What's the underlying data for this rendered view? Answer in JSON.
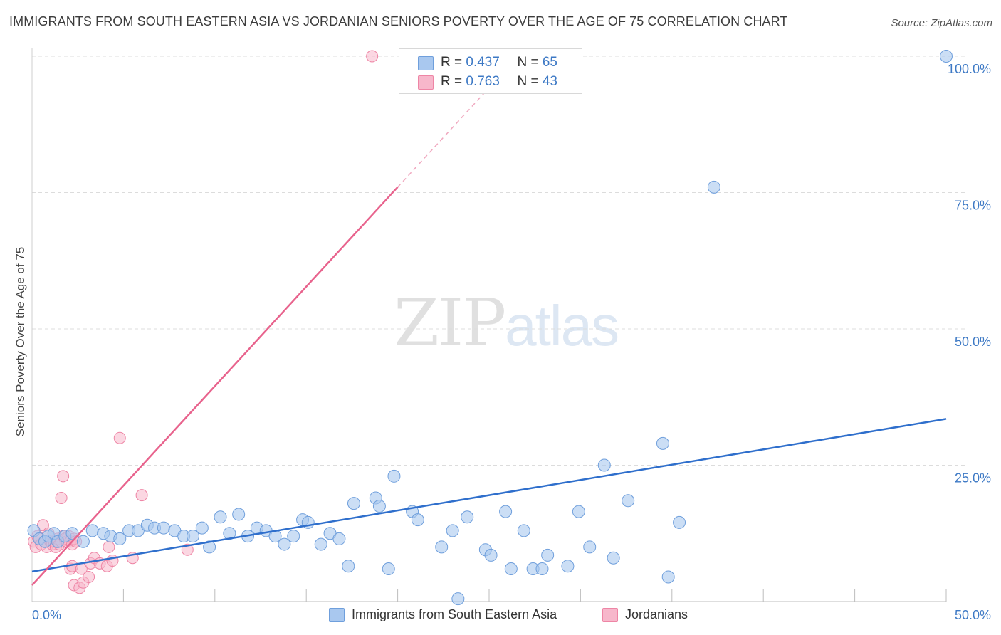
{
  "title": "IMMIGRANTS FROM SOUTH EASTERN ASIA VS JORDANIAN SENIORS POVERTY OVER THE AGE OF 75 CORRELATION CHART",
  "source": "Source: ZipAtlas.com",
  "watermark": {
    "zip": "ZIP",
    "atlas": "atlas"
  },
  "legend": {
    "rows": [
      {
        "r_label": "R = ",
        "r_value": "0.437",
        "n_label": "N = ",
        "n_value": "65",
        "color": "#a9c8ef"
      },
      {
        "r_label": "R = ",
        "r_value": "0.763",
        "n_label": "N = ",
        "n_value": "43",
        "color": "#f7b7cb"
      }
    ]
  },
  "bottom_legend": [
    {
      "label": "Immigrants from South Eastern Asia",
      "color": "#a9c8ef"
    },
    {
      "label": "Jordanians",
      "color": "#f7b7cb"
    }
  ],
  "chart_data": {
    "type": "scatter",
    "title": "IMMIGRANTS FROM SOUTH EASTERN ASIA VS JORDANIAN SENIORS POVERTY OVER THE AGE OF 75 CORRELATION CHART",
    "xlabel": "",
    "ylabel": "Seniors Poverty Over the Age of 75",
    "xlim": [
      0,
      50
    ],
    "ylim": [
      0,
      100
    ],
    "x_tick_labels": [
      "0.0%",
      "50.0%"
    ],
    "y_tick_labels": [
      "25.0%",
      "50.0%",
      "75.0%",
      "100.0%"
    ],
    "y_ticks": [
      25,
      50,
      75,
      100
    ],
    "grid": "horizontal dashed",
    "legend_position": "top-center",
    "colors": {
      "blue_fill": "#a9c8ef",
      "blue_stroke": "#6f9fdc",
      "blue_line": "#2f6fcc",
      "pink_fill": "#f7b7cb",
      "pink_stroke": "#ee85a5",
      "pink_line": "#e8638d",
      "tick_label": "#3d79c5",
      "grid": "#dcdcdc"
    },
    "series": [
      {
        "name": "Immigrants from South Eastern Asia",
        "r": 0.437,
        "n": 65,
        "trend": {
          "x": [
            0,
            50
          ],
          "y": [
            5.5,
            33.5
          ]
        },
        "points": [
          [
            0.1,
            13.0
          ],
          [
            0.4,
            11.5
          ],
          [
            0.7,
            11.0
          ],
          [
            0.9,
            12.0
          ],
          [
            1.2,
            12.5
          ],
          [
            1.4,
            11.0
          ],
          [
            1.8,
            12.0
          ],
          [
            2.2,
            12.5
          ],
          [
            2.8,
            11.0
          ],
          [
            3.3,
            13.0
          ],
          [
            3.9,
            12.5
          ],
          [
            4.3,
            12.0
          ],
          [
            4.8,
            11.5
          ],
          [
            5.3,
            13.0
          ],
          [
            5.8,
            13.0
          ],
          [
            6.3,
            14.0
          ],
          [
            6.7,
            13.5
          ],
          [
            7.2,
            13.5
          ],
          [
            7.8,
            13.0
          ],
          [
            8.3,
            12.0
          ],
          [
            8.8,
            12.0
          ],
          [
            9.3,
            13.5
          ],
          [
            9.7,
            10.0
          ],
          [
            10.3,
            15.5
          ],
          [
            10.8,
            12.5
          ],
          [
            11.3,
            16.0
          ],
          [
            11.8,
            12.0
          ],
          [
            12.3,
            13.5
          ],
          [
            12.8,
            13.0
          ],
          [
            13.3,
            12.0
          ],
          [
            13.8,
            10.5
          ],
          [
            14.3,
            12.0
          ],
          [
            14.8,
            15.0
          ],
          [
            15.1,
            14.5
          ],
          [
            15.8,
            10.5
          ],
          [
            16.3,
            12.5
          ],
          [
            16.8,
            11.5
          ],
          [
            17.3,
            6.5
          ],
          [
            17.6,
            18.0
          ],
          [
            18.8,
            19.0
          ],
          [
            19.0,
            17.5
          ],
          [
            19.5,
            6.0
          ],
          [
            19.8,
            23.0
          ],
          [
            20.8,
            16.5
          ],
          [
            21.1,
            15.0
          ],
          [
            22.4,
            10.0
          ],
          [
            23.0,
            13.0
          ],
          [
            23.3,
            0.5
          ],
          [
            23.8,
            15.5
          ],
          [
            24.8,
            9.5
          ],
          [
            25.1,
            8.5
          ],
          [
            25.9,
            16.5
          ],
          [
            26.2,
            6.0
          ],
          [
            26.9,
            13.0
          ],
          [
            27.4,
            6.0
          ],
          [
            27.9,
            6.0
          ],
          [
            28.2,
            8.5
          ],
          [
            29.3,
            6.5
          ],
          [
            29.9,
            16.5
          ],
          [
            30.5,
            10.0
          ],
          [
            31.3,
            25.0
          ],
          [
            31.8,
            8.0
          ],
          [
            32.6,
            18.5
          ],
          [
            34.5,
            29.0
          ],
          [
            34.8,
            4.5
          ],
          [
            35.4,
            14.5
          ],
          [
            37.3,
            76.0
          ],
          [
            50.0,
            100.0
          ]
        ]
      },
      {
        "name": "Jordanians",
        "r": 0.763,
        "n": 43,
        "trend": {
          "x": [
            0,
            20
          ],
          "y": [
            3.0,
            76.0
          ]
        },
        "trend_dashed": {
          "x": [
            20,
            27
          ],
          "y": [
            76.0,
            101.5
          ]
        },
        "points": [
          [
            0.1,
            11.0
          ],
          [
            0.2,
            10.0
          ],
          [
            0.3,
            12.0
          ],
          [
            0.4,
            11.5
          ],
          [
            0.5,
            10.5
          ],
          [
            0.6,
            14.0
          ],
          [
            0.7,
            11.0
          ],
          [
            0.8,
            10.0
          ],
          [
            0.9,
            12.5
          ],
          [
            1.0,
            11.0
          ],
          [
            1.1,
            10.5
          ],
          [
            1.2,
            11.0
          ],
          [
            1.3,
            10.0
          ],
          [
            1.4,
            11.5
          ],
          [
            1.5,
            10.5
          ],
          [
            1.6,
            11.0
          ],
          [
            1.7,
            12.0
          ],
          [
            1.8,
            11.5
          ],
          [
            1.9,
            11.0
          ],
          [
            2.0,
            12.0
          ],
          [
            2.1,
            11.0
          ],
          [
            2.2,
            10.5
          ],
          [
            2.3,
            11.5
          ],
          [
            2.4,
            11.0
          ],
          [
            1.6,
            19.0
          ],
          [
            1.7,
            23.0
          ],
          [
            2.1,
            6.0
          ],
          [
            2.2,
            6.5
          ],
          [
            2.3,
            3.0
          ],
          [
            2.6,
            2.5
          ],
          [
            2.7,
            6.0
          ],
          [
            2.8,
            3.5
          ],
          [
            3.1,
            4.5
          ],
          [
            3.2,
            7.0
          ],
          [
            3.4,
            8.0
          ],
          [
            3.7,
            7.0
          ],
          [
            4.1,
            6.5
          ],
          [
            4.2,
            10.0
          ],
          [
            4.4,
            7.5
          ],
          [
            4.8,
            30.0
          ],
          [
            5.5,
            8.0
          ],
          [
            6.0,
            19.5
          ],
          [
            8.5,
            9.5
          ],
          [
            18.6,
            100.0
          ]
        ]
      }
    ]
  }
}
